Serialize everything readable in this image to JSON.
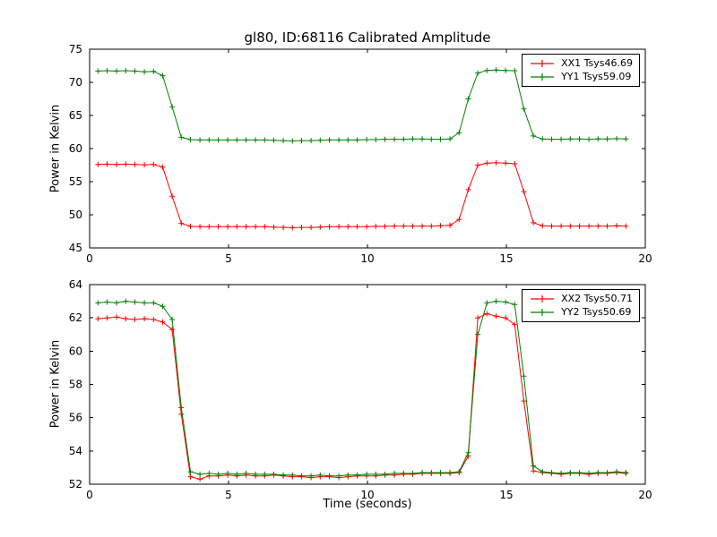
{
  "title": "gl80, ID:68116 Calibrated Amplitude",
  "chart_data": [
    {
      "type": "line",
      "ylabel": "Power in Kelvin",
      "xlabel": "",
      "xlim": [
        0,
        20
      ],
      "ylim": [
        45,
        75
      ],
      "xticks": [
        0,
        5,
        10,
        15,
        20
      ],
      "yticks": [
        45,
        50,
        55,
        60,
        65,
        70,
        75
      ],
      "grid": false,
      "legend_position": "upper right",
      "x": [
        0.3,
        0.63,
        0.97,
        1.3,
        1.63,
        1.97,
        2.3,
        2.63,
        2.97,
        3.3,
        3.63,
        3.97,
        4.3,
        4.63,
        4.97,
        5.3,
        5.63,
        5.97,
        6.3,
        6.63,
        6.97,
        7.3,
        7.63,
        7.97,
        8.3,
        8.63,
        8.97,
        9.3,
        9.63,
        9.97,
        10.3,
        10.63,
        10.97,
        11.3,
        11.63,
        11.97,
        12.3,
        12.63,
        12.97,
        13.3,
        13.63,
        13.97,
        14.3,
        14.63,
        14.97,
        15.3,
        15.63,
        15.97,
        16.3,
        16.63,
        16.97,
        17.3,
        17.63,
        17.97,
        18.3,
        18.63,
        18.97,
        19.3
      ],
      "series": [
        {
          "name": "XX1 Tsys46.69",
          "color": "#ff0000",
          "marker": "+",
          "values": [
            57.6,
            57.65,
            57.6,
            57.65,
            57.6,
            57.55,
            57.6,
            57.2,
            52.8,
            48.7,
            48.25,
            48.2,
            48.2,
            48.2,
            48.2,
            48.2,
            48.2,
            48.2,
            48.2,
            48.15,
            48.1,
            48.05,
            48.1,
            48.1,
            48.15,
            48.2,
            48.2,
            48.2,
            48.2,
            48.2,
            48.25,
            48.25,
            48.3,
            48.3,
            48.3,
            48.3,
            48.3,
            48.35,
            48.4,
            49.3,
            53.8,
            57.5,
            57.8,
            57.85,
            57.8,
            57.7,
            53.5,
            48.8,
            48.35,
            48.3,
            48.3,
            48.3,
            48.3,
            48.3,
            48.3,
            48.3,
            48.35,
            48.3
          ]
        },
        {
          "name": "YY1 Tsys59.09",
          "color": "#008000",
          "marker": "+",
          "values": [
            71.7,
            71.75,
            71.7,
            71.75,
            71.7,
            71.6,
            71.65,
            71.0,
            66.3,
            61.7,
            61.35,
            61.3,
            61.3,
            61.3,
            61.3,
            61.3,
            61.3,
            61.3,
            61.3,
            61.25,
            61.2,
            61.15,
            61.2,
            61.2,
            61.25,
            61.3,
            61.3,
            61.3,
            61.3,
            61.35,
            61.35,
            61.4,
            61.4,
            61.4,
            61.45,
            61.45,
            61.4,
            61.4,
            61.45,
            62.4,
            67.5,
            71.4,
            71.8,
            71.85,
            71.8,
            71.75,
            66.0,
            61.9,
            61.45,
            61.4,
            61.4,
            61.45,
            61.45,
            61.4,
            61.45,
            61.45,
            61.5,
            61.45
          ]
        }
      ]
    },
    {
      "type": "line",
      "ylabel": "Power in Kelvin",
      "xlabel": "Time (seconds)",
      "xlim": [
        0,
        20
      ],
      "ylim": [
        52,
        64
      ],
      "xticks": [
        0,
        5,
        10,
        15,
        20
      ],
      "yticks": [
        52,
        54,
        56,
        58,
        60,
        62,
        64
      ],
      "grid": false,
      "legend_position": "upper right",
      "x": [
        0.3,
        0.63,
        0.97,
        1.3,
        1.63,
        1.97,
        2.3,
        2.63,
        2.97,
        3.3,
        3.63,
        3.97,
        4.3,
        4.63,
        4.97,
        5.3,
        5.63,
        5.97,
        6.3,
        6.63,
        6.97,
        7.3,
        7.63,
        7.97,
        8.3,
        8.63,
        8.97,
        9.3,
        9.63,
        9.97,
        10.3,
        10.63,
        10.97,
        11.3,
        11.63,
        11.97,
        12.3,
        12.63,
        12.97,
        13.3,
        13.63,
        13.97,
        14.3,
        14.63,
        14.97,
        15.3,
        15.63,
        15.97,
        16.3,
        16.63,
        16.97,
        17.3,
        17.63,
        17.97,
        18.3,
        18.63,
        18.97,
        19.3
      ],
      "series": [
        {
          "name": "XX2 Tsys50.71",
          "color": "#ff0000",
          "marker": "+",
          "values": [
            61.95,
            62.0,
            62.05,
            61.95,
            61.9,
            61.95,
            61.9,
            61.75,
            61.3,
            56.2,
            52.45,
            52.3,
            52.5,
            52.5,
            52.55,
            52.5,
            52.55,
            52.5,
            52.5,
            52.55,
            52.5,
            52.45,
            52.45,
            52.4,
            52.45,
            52.45,
            52.4,
            52.45,
            52.5,
            52.5,
            52.5,
            52.55,
            52.55,
            52.6,
            52.6,
            52.65,
            52.65,
            52.65,
            52.65,
            52.7,
            53.7,
            62.0,
            62.25,
            62.1,
            62.0,
            61.6,
            57.0,
            52.8,
            52.7,
            52.65,
            52.6,
            52.65,
            52.65,
            52.6,
            52.65,
            52.65,
            52.7,
            52.65
          ]
        },
        {
          "name": "YY2 Tsys50.69",
          "color": "#008000",
          "marker": "+",
          "values": [
            62.9,
            62.95,
            62.9,
            63.0,
            62.95,
            62.9,
            62.9,
            62.7,
            61.9,
            56.6,
            52.75,
            52.6,
            52.65,
            52.6,
            52.65,
            52.6,
            52.65,
            52.6,
            52.6,
            52.6,
            52.55,
            52.55,
            52.5,
            52.5,
            52.55,
            52.5,
            52.5,
            52.55,
            52.55,
            52.6,
            52.6,
            52.6,
            52.65,
            52.65,
            52.65,
            52.7,
            52.7,
            52.7,
            52.7,
            52.75,
            53.9,
            61.0,
            62.9,
            63.0,
            62.95,
            62.8,
            58.5,
            53.1,
            52.75,
            52.7,
            52.65,
            52.7,
            52.7,
            52.65,
            52.7,
            52.7,
            52.75,
            52.7
          ]
        }
      ]
    }
  ]
}
